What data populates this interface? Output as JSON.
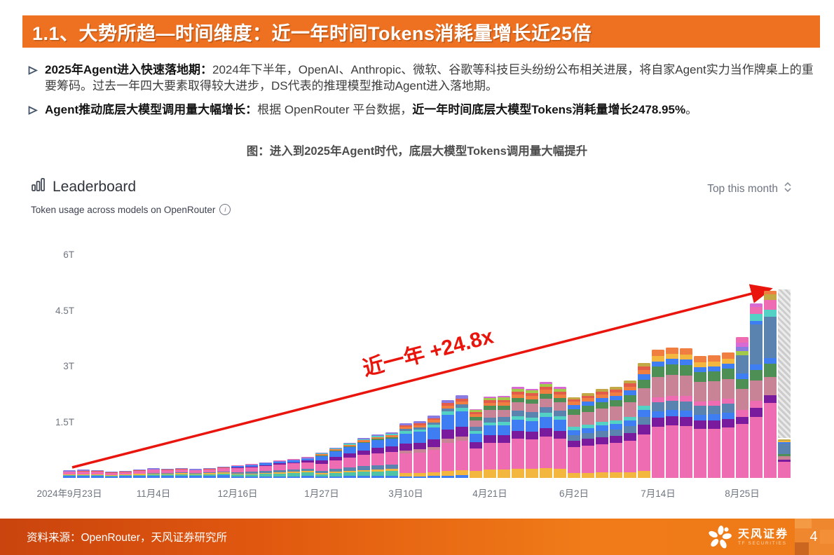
{
  "header": {
    "title": "1.1、大势所趋—时间维度：近一年时间Tokens消耗量增长近25倍"
  },
  "bullets": [
    {
      "bold": "2025年Agent进入快速落地期：",
      "text": "2024年下半年，OpenAI、Anthropic、微软、谷歌等科技巨头纷纷公布相关进展，将自家Agent实力当作牌桌上的重要筹码。过去一年四大要素取得较大进步，DS代表的推理模型推动Agent进入落地期。"
    },
    {
      "bold": "Agent推动底层大模型调用量大幅增长：",
      "text": "根据 OpenRouter 平台数据，",
      "bold2": "近一年时间底层大模型Tokens消耗量增长2478.95%",
      "tail": "。"
    }
  ],
  "figure_caption": "图：进入到2025年Agent时代，底层大模型Tokens调用量大幅提升",
  "leaderboard": {
    "title": "Leaderboard",
    "subtitle": "Token usage across models on OpenRouter",
    "filter": "Top this month"
  },
  "annotation": {
    "label": "近一年 +24.8x",
    "color": "#e9140c"
  },
  "footer": {
    "source": "资料来源：OpenRouter，天风证券研究所",
    "logo_cn": "天风证券",
    "logo_en": "TF SECURITIES",
    "page": "4"
  },
  "chart_data": {
    "type": "bar",
    "stacked": true,
    "title": "Token usage across models on OpenRouter",
    "unit": "trillion tokens per week",
    "ylim": [
      0,
      6
    ],
    "grid": false,
    "legend": "none",
    "y_ticks": [
      {
        "label": "1.5T",
        "value": 1.5
      },
      {
        "label": "3T",
        "value": 3
      },
      {
        "label": "4.5T",
        "value": 4.5
      },
      {
        "label": "6T",
        "value": 6
      }
    ],
    "x_ticks": [
      {
        "label": "2024年9月23日",
        "bar": 0
      },
      {
        "label": "11月4日",
        "bar": 6
      },
      {
        "label": "12月16日",
        "bar": 12
      },
      {
        "label": "1月27日",
        "bar": 18
      },
      {
        "label": "3月10日",
        "bar": 24
      },
      {
        "label": "4月21日",
        "bar": 30
      },
      {
        "label": "6月2日",
        "bar": 36
      },
      {
        "label": "7月14日",
        "bar": 42
      },
      {
        "label": "8月25日",
        "bar": 48
      }
    ],
    "palette": {
      "pink": "#ee6db2",
      "mauve": "#c98397",
      "purple": "#7a1b9e",
      "blue": "#3e7df2",
      "steel": "#5b83b0",
      "teal": "#4fc3a5",
      "teal2": "#53d1c5",
      "green": "#4e8f55",
      "yellow": "#f3b63f",
      "orange": "#f07e41",
      "red": "#e25c49",
      "lime": "#a2c94a",
      "violet": "#8a7be0",
      "magenta": "#d86ad4",
      "khaki": "#c3a846"
    },
    "templates": {
      "A": [
        [
          "blue",
          0.27
        ],
        [
          "teal",
          0.09
        ],
        [
          "yellow",
          0.11
        ],
        [
          "pink",
          0.34
        ],
        [
          "red",
          0.07
        ],
        [
          "violet",
          0.12
        ]
      ],
      "B": [
        [
          "blue",
          0.22
        ],
        [
          "teal",
          0.15
        ],
        [
          "yellow",
          0.1
        ],
        [
          "steel",
          0.07
        ],
        [
          "pink",
          0.3
        ],
        [
          "red",
          0.06
        ],
        [
          "violet",
          0.1
        ]
      ],
      "C": [
        [
          "blue",
          0.09
        ],
        [
          "teal",
          0.17
        ],
        [
          "yellow",
          0.07
        ],
        [
          "steel",
          0.12
        ],
        [
          "pink",
          0.31
        ],
        [
          "purple",
          0.07
        ],
        [
          "blue",
          0.1
        ],
        [
          "violet",
          0.04
        ],
        [
          "pink",
          0.03
        ]
      ],
      "D": [
        [
          "blue",
          0.05
        ],
        [
          "teal",
          0.1
        ],
        [
          "yellow",
          0.05
        ],
        [
          "steel",
          0.09
        ],
        [
          "pink",
          0.28
        ],
        [
          "purple",
          0.12
        ],
        [
          "blue",
          0.18
        ],
        [
          "green",
          0.03
        ],
        [
          "orange",
          0.04
        ],
        [
          "teal2",
          0.03
        ],
        [
          "violet",
          0.03
        ]
      ],
      "E": [
        [
          "blue",
          0.03
        ],
        [
          "yellow",
          0.06
        ],
        [
          "pink",
          0.36
        ],
        [
          "mauve",
          0.05
        ],
        [
          "purple",
          0.12
        ],
        [
          "blue",
          0.19
        ],
        [
          "teal2",
          0.04
        ],
        [
          "steel",
          0.04
        ],
        [
          "orange",
          0.04
        ],
        [
          "red",
          0.03
        ],
        [
          "violet",
          0.04
        ]
      ],
      "F": [
        [
          "yellow",
          0.1
        ],
        [
          "pink",
          0.33
        ],
        [
          "purple",
          0.09
        ],
        [
          "blue",
          0.12
        ],
        [
          "teal2",
          0.04
        ],
        [
          "steel",
          0.06
        ],
        [
          "mauve",
          0.09
        ],
        [
          "green",
          0.05
        ],
        [
          "orange",
          0.04
        ],
        [
          "red",
          0.03
        ],
        [
          "lime",
          0.03
        ],
        [
          "magenta",
          0.02
        ]
      ],
      "G": [
        [
          "yellow",
          0.06
        ],
        [
          "pink",
          0.32
        ],
        [
          "purple",
          0.08
        ],
        [
          "steel",
          0.07
        ],
        [
          "blue",
          0.06
        ],
        [
          "teal2",
          0.04
        ],
        [
          "mauve",
          0.15
        ],
        [
          "green",
          0.07
        ],
        [
          "blue",
          0.05
        ],
        [
          "orange",
          0.04
        ],
        [
          "red",
          0.03
        ],
        [
          "khaki",
          0.03
        ]
      ],
      "H": [
        [
          "pink",
          0.4
        ],
        [
          "purple",
          0.07
        ],
        [
          "blue",
          0.05
        ],
        [
          "steel",
          0.07
        ],
        [
          "pink",
          0.04
        ],
        [
          "mauve",
          0.16
        ],
        [
          "green",
          0.08
        ],
        [
          "blue",
          0.04
        ],
        [
          "yellow",
          0.04
        ],
        [
          "orange",
          0.05
        ]
      ],
      "I": [
        [
          "pink",
          0.38
        ],
        [
          "purple",
          0.05
        ],
        [
          "pink",
          0.05
        ],
        [
          "mauve",
          0.15
        ],
        [
          "green",
          0.07
        ],
        [
          "blue",
          0.04
        ],
        [
          "steel",
          0.13
        ],
        [
          "lime",
          0.03
        ],
        [
          "violet",
          0.03
        ],
        [
          "magenta",
          0.03
        ],
        [
          "pink",
          0.04
        ]
      ],
      "J": [
        [
          "pink",
          0.35
        ],
        [
          "purple",
          0.05
        ],
        [
          "pink",
          0.04
        ],
        [
          "mauve",
          0.12
        ],
        [
          "green",
          0.06
        ],
        [
          "blue",
          0.03
        ],
        [
          "steel",
          0.23
        ],
        [
          "blue",
          0.02
        ],
        [
          "teal2",
          0.04
        ],
        [
          "pink",
          0.04
        ],
        [
          "magenta",
          0.02
        ]
      ],
      "K": [
        [
          "pink",
          0.4
        ],
        [
          "purple",
          0.04
        ],
        [
          "mauve",
          0.1
        ],
        [
          "green",
          0.07
        ],
        [
          "blue",
          0.03
        ],
        [
          "steel",
          0.22
        ],
        [
          "teal2",
          0.04
        ],
        [
          "pink",
          0.05
        ],
        [
          "khaki",
          0.03
        ],
        [
          "orange",
          0.02
        ]
      ],
      "L": [
        [
          "pink",
          0.42
        ],
        [
          "purple",
          0.05
        ],
        [
          "mauve",
          0.09
        ],
        [
          "green",
          0.06
        ],
        [
          "steel",
          0.27
        ],
        [
          "blue",
          0.04
        ],
        [
          "yellow",
          0.04
        ],
        [
          "khaki",
          0.03
        ]
      ]
    },
    "bars": [
      {
        "t": 0.2,
        "k": "A"
      },
      {
        "t": 0.22,
        "k": "A"
      },
      {
        "t": 0.21,
        "k": "A"
      },
      {
        "t": 0.17,
        "k": "A"
      },
      {
        "t": 0.19,
        "k": "A"
      },
      {
        "t": 0.23,
        "k": "A"
      },
      {
        "t": 0.26,
        "k": "B"
      },
      {
        "t": 0.25,
        "k": "B"
      },
      {
        "t": 0.27,
        "k": "B"
      },
      {
        "t": 0.24,
        "k": "B"
      },
      {
        "t": 0.27,
        "k": "B"
      },
      {
        "t": 0.31,
        "k": "B"
      },
      {
        "t": 0.34,
        "k": "C"
      },
      {
        "t": 0.37,
        "k": "C"
      },
      {
        "t": 0.42,
        "k": "C"
      },
      {
        "t": 0.47,
        "k": "C"
      },
      {
        "t": 0.51,
        "k": "C"
      },
      {
        "t": 0.56,
        "k": "C"
      },
      {
        "t": 0.68,
        "k": "D"
      },
      {
        "t": 0.82,
        "k": "D"
      },
      {
        "t": 0.95,
        "k": "D"
      },
      {
        "t": 1.08,
        "k": "D"
      },
      {
        "t": 1.17,
        "k": "D"
      },
      {
        "t": 1.22,
        "k": "D"
      },
      {
        "t": 1.48,
        "k": "E"
      },
      {
        "t": 1.53,
        "k": "E"
      },
      {
        "t": 1.68,
        "k": "E"
      },
      {
        "t": 2.1,
        "k": "E"
      },
      {
        "t": 2.22,
        "k": "E"
      },
      {
        "t": 1.86,
        "k": "F"
      },
      {
        "t": 2.2,
        "k": "F"
      },
      {
        "t": 2.21,
        "k": "F"
      },
      {
        "t": 2.45,
        "k": "F"
      },
      {
        "t": 2.4,
        "k": "F"
      },
      {
        "t": 2.58,
        "k": "F"
      },
      {
        "t": 2.45,
        "k": "F"
      },
      {
        "t": 2.18,
        "k": "G"
      },
      {
        "t": 2.28,
        "k": "G"
      },
      {
        "t": 2.4,
        "k": "G"
      },
      {
        "t": 2.46,
        "k": "G"
      },
      {
        "t": 2.62,
        "k": "G"
      },
      {
        "t": 3.1,
        "k": "G"
      },
      {
        "t": 3.45,
        "k": "H"
      },
      {
        "t": 3.52,
        "k": "H"
      },
      {
        "t": 3.5,
        "k": "H"
      },
      {
        "t": 3.28,
        "k": "H"
      },
      {
        "t": 3.3,
        "k": "H"
      },
      {
        "t": 3.38,
        "k": "H"
      },
      {
        "t": 3.8,
        "k": "I"
      },
      {
        "t": 4.7,
        "k": "J"
      },
      {
        "t": 5.04,
        "k": "K"
      },
      {
        "t": 5.07,
        "k": "L",
        "solid": 1.03,
        "hatched": true
      }
    ],
    "growth_note": "first week ≈0.2T → last week ≈5.0T, +2478.95% (≈24.8x)"
  }
}
